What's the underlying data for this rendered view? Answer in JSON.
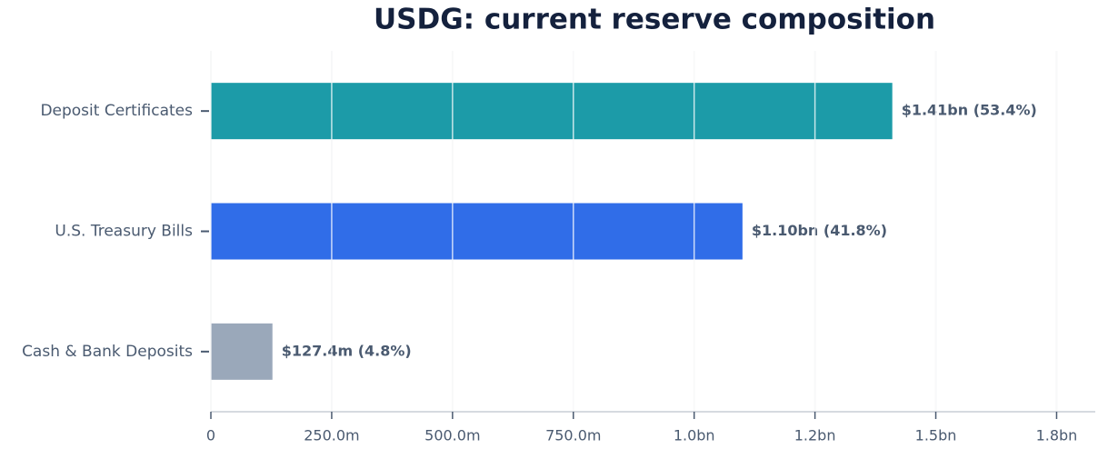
{
  "chart_data": {
    "type": "barh",
    "title": "USDG: current reserve composition",
    "categories": [
      "Deposit Certificates",
      "U.S. Treasury Bills",
      "Cash & Bank Deposits"
    ],
    "values": [
      1410000000,
      1100000000,
      127400000
    ],
    "value_labels": [
      "$1.41bn (53.4%)",
      "$1.10bn (41.8%)",
      "$127.4m (4.8%)"
    ],
    "colors": [
      "#1c9ba8",
      "#306de8",
      "#9aa8ba"
    ],
    "xlim": [
      0,
      1830000000
    ],
    "xticks": [
      0,
      {
        "value": 250000000,
        "label": "250.0m"
      },
      {
        "value": 500000000,
        "label": "500.0m"
      },
      {
        "value": 750000000,
        "label": "750.0m"
      },
      {
        "value": 1000000000,
        "label": "1.0bn"
      },
      {
        "value": 1250000000,
        "label": "1.2bn"
      },
      {
        "value": 1500000000,
        "label": "1.5bn"
      },
      {
        "value": 1750000000,
        "label": "1.8bn"
      }
    ],
    "grid": true
  }
}
